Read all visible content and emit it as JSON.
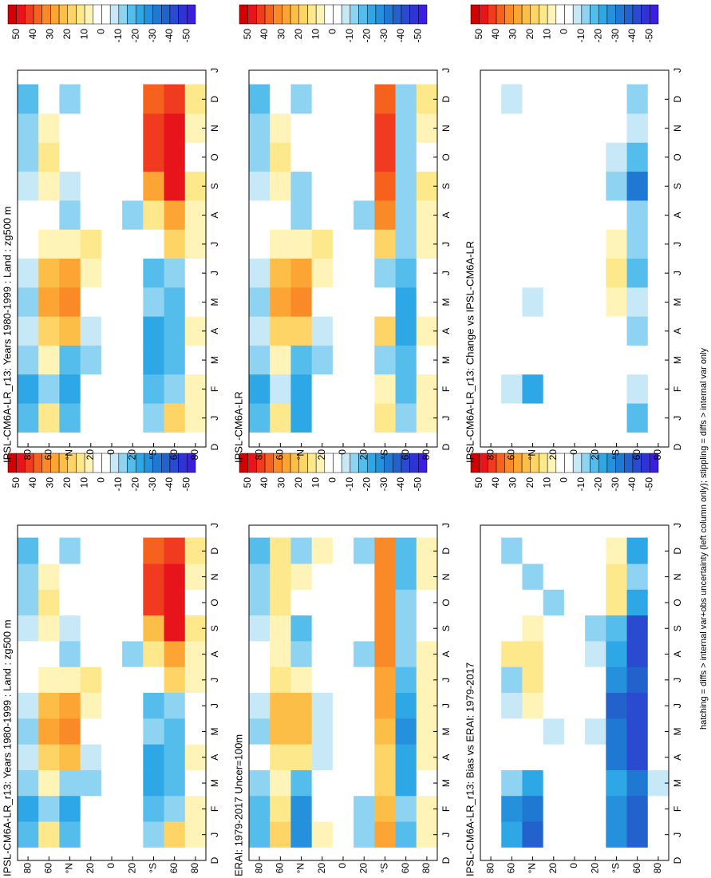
{
  "chart_data": [
    {
      "type": "heatmap",
      "title": "IPSL-CM6A-LR_r13: Years 1980-1999 : Land : zg500 m",
      "x": [
        1,
        2,
        3,
        4,
        5,
        6,
        7,
        8,
        9,
        10,
        11,
        12
      ],
      "y": [
        80,
        60,
        40,
        20,
        0,
        -20,
        -40,
        -60,
        -80
      ],
      "z": [
        [
          -15,
          -20,
          -10,
          -5,
          -10,
          -5,
          0,
          0,
          -5,
          -10,
          -10,
          -15
        ],
        [
          15,
          -10,
          10,
          20,
          30,
          25,
          10,
          0,
          10,
          15,
          10,
          5
        ],
        [
          -15,
          -20,
          -10,
          25,
          35,
          30,
          10,
          -10,
          -5,
          5,
          0,
          -10
        ],
        [
          5,
          0,
          -10,
          -5,
          5,
          10,
          15,
          0,
          0,
          0,
          5,
          5
        ],
        [
          0,
          0,
          0,
          0,
          0,
          5,
          5,
          0,
          0,
          0,
          0,
          0
        ],
        [
          0,
          0,
          0,
          0,
          0,
          0,
          0,
          -10,
          0,
          0,
          0,
          0
        ],
        [
          -10,
          -15,
          -20,
          -20,
          -10,
          -15,
          5,
          15,
          25,
          45,
          45,
          40
        ],
        [
          20,
          -10,
          -15,
          -15,
          -15,
          -10,
          20,
          30,
          50,
          50,
          50,
          45
        ],
        [
          10,
          10,
          5,
          10,
          5,
          5,
          10,
          10,
          15,
          5,
          10,
          15
        ]
      ]
    },
    {
      "type": "heatmap",
      "title": "IPSL-CM6A-LR_r13: Years 1980-1999 : Land : zg500 m",
      "x": [
        1,
        2,
        3,
        4,
        5,
        6,
        7,
        8,
        9,
        10,
        11,
        12
      ],
      "y": [
        80,
        60,
        40,
        20,
        0,
        -20,
        -40,
        -60,
        -80
      ],
      "z": [
        [
          -15,
          -20,
          -10,
          -5,
          -10,
          -5,
          0,
          0,
          -5,
          -10,
          -10,
          -15
        ],
        [
          15,
          -10,
          10,
          20,
          30,
          25,
          10,
          0,
          10,
          15,
          10,
          5
        ],
        [
          -15,
          -20,
          -15,
          25,
          35,
          30,
          10,
          -10,
          -5,
          5,
          0,
          -10
        ],
        [
          5,
          0,
          -10,
          -5,
          5,
          10,
          15,
          0,
          0,
          0,
          5,
          5
        ],
        [
          0,
          0,
          0,
          0,
          0,
          5,
          5,
          0,
          0,
          0,
          0,
          0
        ],
        [
          0,
          0,
          0,
          0,
          0,
          0,
          0,
          -10,
          0,
          0,
          0,
          0
        ],
        [
          -10,
          -15,
          -20,
          -20,
          -10,
          -15,
          5,
          15,
          30,
          45,
          45,
          40
        ],
        [
          20,
          -10,
          -15,
          -15,
          -15,
          -10,
          20,
          30,
          50,
          50,
          50,
          45
        ],
        [
          10,
          10,
          5,
          10,
          5,
          5,
          10,
          10,
          15,
          5,
          10,
          15
        ]
      ]
    },
    {
      "type": "heatmap",
      "title": "ERAI: 1979-2017 Uncer=100m",
      "x": [
        1,
        2,
        3,
        4,
        5,
        6,
        7,
        8,
        9,
        10,
        11,
        12
      ],
      "y": [
        80,
        60,
        40,
        20,
        0,
        -20,
        -40,
        -60,
        -80
      ],
      "z": [
        [
          -15,
          -15,
          -10,
          0,
          -10,
          -5,
          0,
          0,
          -5,
          -10,
          -10,
          -15
        ],
        [
          20,
          15,
          10,
          15,
          25,
          25,
          15,
          10,
          10,
          15,
          15,
          15
        ],
        [
          -25,
          -25,
          -15,
          15,
          25,
          25,
          10,
          -10,
          -15,
          5,
          10,
          -10
        ],
        [
          10,
          5,
          0,
          -5,
          -5,
          -5,
          5,
          5,
          0,
          0,
          5,
          10
        ],
        [
          0,
          0,
          0,
          0,
          5,
          0,
          5,
          0,
          0,
          0,
          0,
          0
        ],
        [
          -10,
          -10,
          0,
          0,
          0,
          0,
          0,
          -10,
          0,
          0,
          0,
          -10
        ],
        [
          30,
          25,
          20,
          20,
          25,
          30,
          30,
          35,
          35,
          35,
          35,
          35
        ],
        [
          -15,
          -10,
          -20,
          -20,
          -25,
          -20,
          -15,
          -10,
          -10,
          -10,
          -15,
          -15
        ],
        [
          10,
          10,
          5,
          10,
          10,
          10,
          10,
          10,
          5,
          5,
          10,
          10
        ]
      ]
    },
    {
      "type": "heatmap",
      "title": "IPSL-CM6A-LR",
      "x": [
        1,
        2,
        3,
        4,
        5,
        6,
        7,
        8,
        9,
        10,
        11,
        12
      ],
      "y": [
        80,
        60,
        40,
        20,
        0,
        -20,
        -40,
        -60,
        -80
      ],
      "z": [
        [
          -15,
          -20,
          -10,
          -5,
          -10,
          -5,
          0,
          0,
          -5,
          -10,
          -10,
          -15
        ],
        [
          15,
          -5,
          10,
          20,
          30,
          25,
          10,
          5,
          10,
          15,
          10,
          5
        ],
        [
          -20,
          -20,
          -15,
          20,
          35,
          30,
          10,
          -10,
          -10,
          5,
          0,
          -10
        ],
        [
          5,
          0,
          -10,
          -5,
          5,
          10,
          15,
          0,
          0,
          0,
          5,
          5
        ],
        [
          0,
          0,
          0,
          0,
          0,
          5,
          5,
          0,
          0,
          0,
          0,
          0
        ],
        [
          0,
          0,
          0,
          0,
          0,
          0,
          0,
          -10,
          0,
          0,
          0,
          0
        ],
        [
          15,
          10,
          -10,
          20,
          5,
          -10,
          20,
          35,
          40,
          45,
          45,
          40
        ],
        [
          -10,
          -15,
          -15,
          -20,
          -20,
          -15,
          -10,
          -10,
          -10,
          -10,
          -10,
          -10
        ],
        [
          10,
          10,
          5,
          10,
          5,
          5,
          10,
          10,
          15,
          5,
          10,
          15
        ]
      ]
    },
    {
      "type": "heatmap",
      "title": "IPSL-CM6A-LR_r13: Bias vs ERAI: 1979-2017",
      "x": [
        1,
        2,
        3,
        4,
        5,
        6,
        7,
        8,
        9,
        10,
        11,
        12
      ],
      "y": [
        80,
        60,
        40,
        20,
        0,
        -20,
        -40,
        -60,
        -80
      ],
      "z": [
        [
          0,
          0,
          0,
          0,
          0,
          0,
          0,
          0,
          0,
          0,
          0,
          0
        ],
        [
          -20,
          -25,
          -10,
          5,
          0,
          -5,
          -10,
          15,
          5,
          5,
          0,
          -10
        ],
        [
          -35,
          -30,
          -20,
          0,
          0,
          10,
          15,
          15,
          10,
          0,
          -10,
          0
        ],
        [
          5,
          0,
          0,
          0,
          -5,
          0,
          5,
          0,
          0,
          -10,
          0,
          0
        ],
        [
          0,
          0,
          0,
          0,
          0,
          0,
          0,
          0,
          0,
          0,
          0,
          0
        ],
        [
          0,
          0,
          0,
          0,
          -5,
          0,
          0,
          -5,
          -10,
          0,
          0,
          0
        ],
        [
          -25,
          -25,
          -20,
          -30,
          -30,
          -35,
          -25,
          -20,
          -15,
          15,
          15,
          10
        ],
        [
          -35,
          -35,
          -30,
          -40,
          -40,
          -40,
          -35,
          -40,
          -40,
          -20,
          -10,
          -20
        ],
        [
          0,
          0,
          -5,
          0,
          0,
          0,
          0,
          0,
          0,
          0,
          0,
          5
        ]
      ]
    },
    {
      "type": "heatmap",
      "title": "IPSL-CM6A-LR_r13: Change vs IPSL-CM6A-LR",
      "x": [
        1,
        2,
        3,
        4,
        5,
        6,
        7,
        8,
        9,
        10,
        11,
        12
      ],
      "y": [
        80,
        60,
        40,
        20,
        0,
        -20,
        -40,
        -60,
        -80
      ],
      "z": [
        [
          0,
          0,
          0,
          0,
          0,
          0,
          0,
          0,
          0,
          0,
          0,
          0
        ],
        [
          0,
          -5,
          0,
          0,
          0,
          0,
          0,
          0,
          0,
          0,
          0,
          -5
        ],
        [
          0,
          -20,
          0,
          0,
          -5,
          0,
          0,
          0,
          0,
          0,
          0,
          0
        ],
        [
          0,
          0,
          0,
          0,
          0,
          0,
          0,
          0,
          0,
          0,
          0,
          0
        ],
        [
          0,
          0,
          0,
          0,
          0,
          0,
          0,
          0,
          0,
          0,
          0,
          0
        ],
        [
          0,
          0,
          0,
          0,
          0,
          0,
          0,
          0,
          0,
          0,
          0,
          0
        ],
        [
          0,
          5,
          0,
          5,
          10,
          15,
          10,
          5,
          -10,
          -5,
          5,
          0
        ],
        [
          -15,
          -5,
          0,
          -10,
          -5,
          -15,
          -10,
          -10,
          -30,
          -15,
          -5,
          -10
        ],
        [
          0,
          0,
          0,
          5,
          5,
          0,
          0,
          5,
          0,
          0,
          0,
          0
        ]
      ]
    }
  ],
  "axes": {
    "xlim": [
      0,
      13
    ],
    "xticks": [
      {
        "value": 0,
        "label": "D"
      },
      {
        "value": 1,
        "label": "J"
      },
      {
        "value": 2,
        "label": "F"
      },
      {
        "value": 3,
        "label": "M"
      },
      {
        "value": 4,
        "label": "A"
      },
      {
        "value": 5,
        "label": "M"
      },
      {
        "value": 6,
        "label": "J"
      },
      {
        "value": 7,
        "label": "J"
      },
      {
        "value": 8,
        "label": "A"
      },
      {
        "value": 9,
        "label": "S"
      },
      {
        "value": 10,
        "label": "O"
      },
      {
        "value": 11,
        "label": "N"
      },
      {
        "value": 12,
        "label": "D"
      },
      {
        "value": 13,
        "label": "J"
      }
    ],
    "ylim": [
      90,
      -90
    ],
    "yticks": [
      80,
      60,
      {
        "value": 40,
        "label": "°N"
      },
      20,
      0,
      {
        "value": -20,
        "label": "20"
      },
      {
        "value": -40,
        "label": "°S"
      },
      {
        "value": -60,
        "label": "60"
      },
      {
        "value": -80,
        "label": "80"
      }
    ]
  },
  "colorbar": {
    "levels": [
      55,
      50,
      45,
      40,
      35,
      30,
      25,
      20,
      15,
      10,
      5,
      0,
      -5,
      -10,
      -15,
      -20,
      -25,
      -30,
      -35,
      -40,
      -45,
      -50,
      -55
    ],
    "colors": [
      "#d40000",
      "#e8141c",
      "#f03b20",
      "#f6621e",
      "#fa8a28",
      "#fca535",
      "#fdbe48",
      "#fed466",
      "#fee88c",
      "#fff4b8",
      "#ffffff",
      "#ffffff",
      "#c6e8f7",
      "#8fd3f2",
      "#55bdec",
      "#2ea7e6",
      "#2590dc",
      "#1f78d1",
      "#2361cc",
      "#2a4ad0",
      "#2f33d6",
      "#3a1fe0"
    ],
    "ticks": [
      50,
      40,
      30,
      20,
      10,
      0,
      -10,
      -20,
      -30,
      -40,
      -50
    ]
  },
  "footnote": "hatching = diffs > internal var+obs uncertainty (left column only); stippling = diffs > internal var only"
}
